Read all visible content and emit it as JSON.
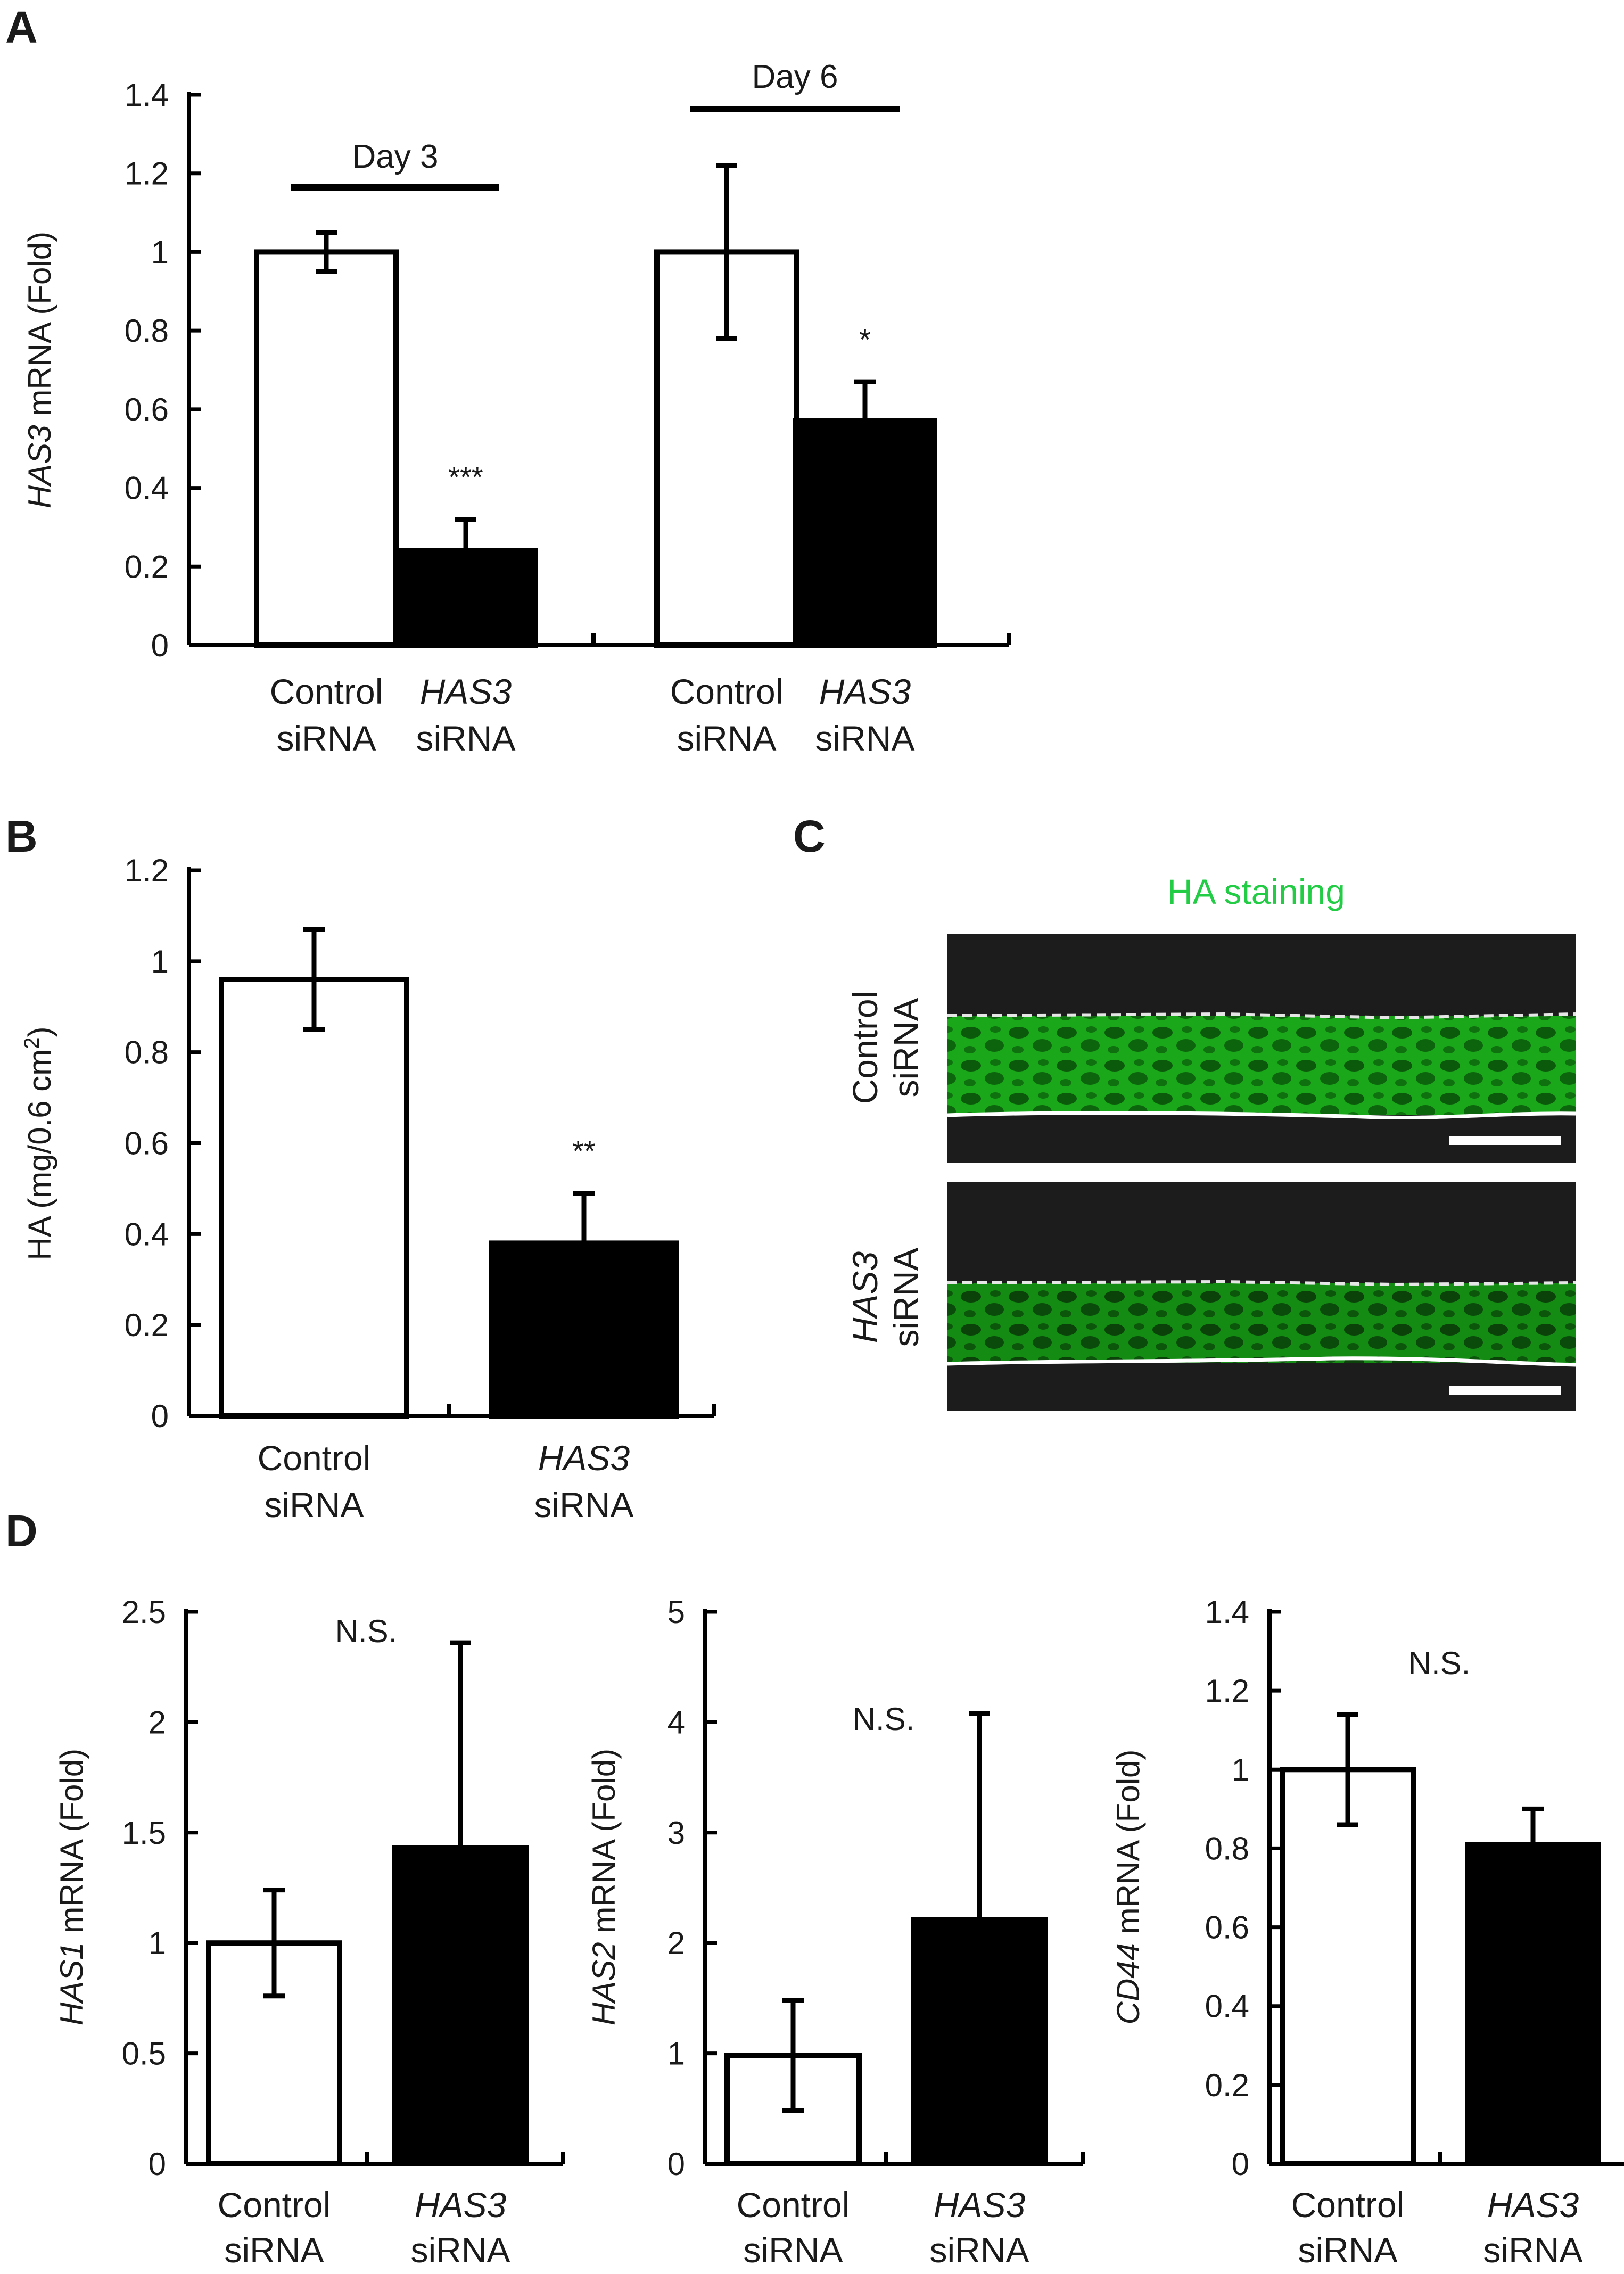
{
  "panels": {
    "A": "A",
    "B": "B",
    "C": "C",
    "D": "D"
  },
  "colors": {
    "control_fill": "#ffffff",
    "has3_fill": "#000000",
    "stain": "#22cc44",
    "stain_bg": "#1c1c1c"
  },
  "chart_data": [
    {
      "id": "A",
      "type": "bar",
      "ylabel_italic": "HAS3",
      "ylabel_rest": " mRNA (Fold)",
      "ylim": [
        0,
        1.4
      ],
      "yticks": [
        "0",
        "0.2",
        "0.4",
        "0.6",
        "0.8",
        "1",
        "1.2",
        "1.4"
      ],
      "groups": [
        "Day 3",
        "Day 6"
      ],
      "categories": [
        {
          "line1": "Control",
          "line2": "siRNA",
          "italic": false
        },
        {
          "line1": "HAS3",
          "line2": "siRNA",
          "italic": true
        },
        {
          "line1": "Control",
          "line2": "siRNA",
          "italic": false
        },
        {
          "line1": "HAS3",
          "line2": "siRNA",
          "italic": true
        }
      ],
      "values": [
        1.0,
        0.24,
        1.0,
        0.57
      ],
      "errors": [
        0.05,
        0.08,
        0.22,
        0.1
      ],
      "significance": [
        "",
        "***",
        "",
        "*"
      ]
    },
    {
      "id": "B",
      "type": "bar",
      "ylabel": "HA (mg/0.6 cm²)",
      "ylim": [
        0,
        1.2
      ],
      "yticks": [
        "0",
        "0.2",
        "0.4",
        "0.6",
        "0.8",
        "1",
        "1.2"
      ],
      "categories": [
        {
          "line1": "Control",
          "line2": "siRNA",
          "italic": false
        },
        {
          "line1": "HAS3",
          "line2": "siRNA",
          "italic": true
        }
      ],
      "values": [
        0.96,
        0.38
      ],
      "errors": [
        0.11,
        0.11
      ],
      "significance": [
        "",
        "**"
      ]
    },
    {
      "id": "D1",
      "type": "bar",
      "ylabel_italic": "HAS1",
      "ylabel_rest": " mRNA (Fold)",
      "ylim": [
        0,
        2.5
      ],
      "yticks": [
        "0",
        "0.5",
        "1",
        "1.5",
        "2",
        "2.5"
      ],
      "categories": [
        {
          "line1": "Control",
          "line2": "siRNA",
          "italic": false
        },
        {
          "line1": "HAS3",
          "line2": "siRNA",
          "italic": true
        }
      ],
      "values": [
        1.0,
        1.43
      ],
      "errors": [
        0.24,
        0.93
      ],
      "note": "N.S."
    },
    {
      "id": "D2",
      "type": "bar",
      "ylabel_italic": "HAS2",
      "ylabel_rest": " mRNA (Fold)",
      "ylim": [
        0,
        5
      ],
      "yticks": [
        "0",
        "1",
        "2",
        "3",
        "4",
        "5"
      ],
      "categories": [
        {
          "line1": "Control",
          "line2": "siRNA",
          "italic": false
        },
        {
          "line1": "HAS3",
          "line2": "siRNA",
          "italic": true
        }
      ],
      "values": [
        0.98,
        2.21
      ],
      "errors": [
        0.5,
        1.87
      ],
      "note": "N.S."
    },
    {
      "id": "D3",
      "type": "bar",
      "ylabel_italic": "CD44",
      "ylabel_rest": " mRNA (Fold)",
      "ylim": [
        0,
        1.4
      ],
      "yticks": [
        "0",
        "0.2",
        "0.4",
        "0.6",
        "0.8",
        "1",
        "1.2",
        "1.4"
      ],
      "categories": [
        {
          "line1": "Control",
          "line2": "siRNA",
          "italic": false
        },
        {
          "line1": "HAS3",
          "line2": "siRNA",
          "italic": true
        }
      ],
      "values": [
        1.0,
        0.81
      ],
      "errors": [
        0.14,
        0.09
      ],
      "note": "N.S."
    }
  ],
  "staining": {
    "title": "HA staining",
    "rows": [
      {
        "line1": "Control",
        "line2": "siRNA",
        "italic": false
      },
      {
        "line1": "HAS3",
        "line2": "siRNA",
        "italic": true
      }
    ]
  }
}
